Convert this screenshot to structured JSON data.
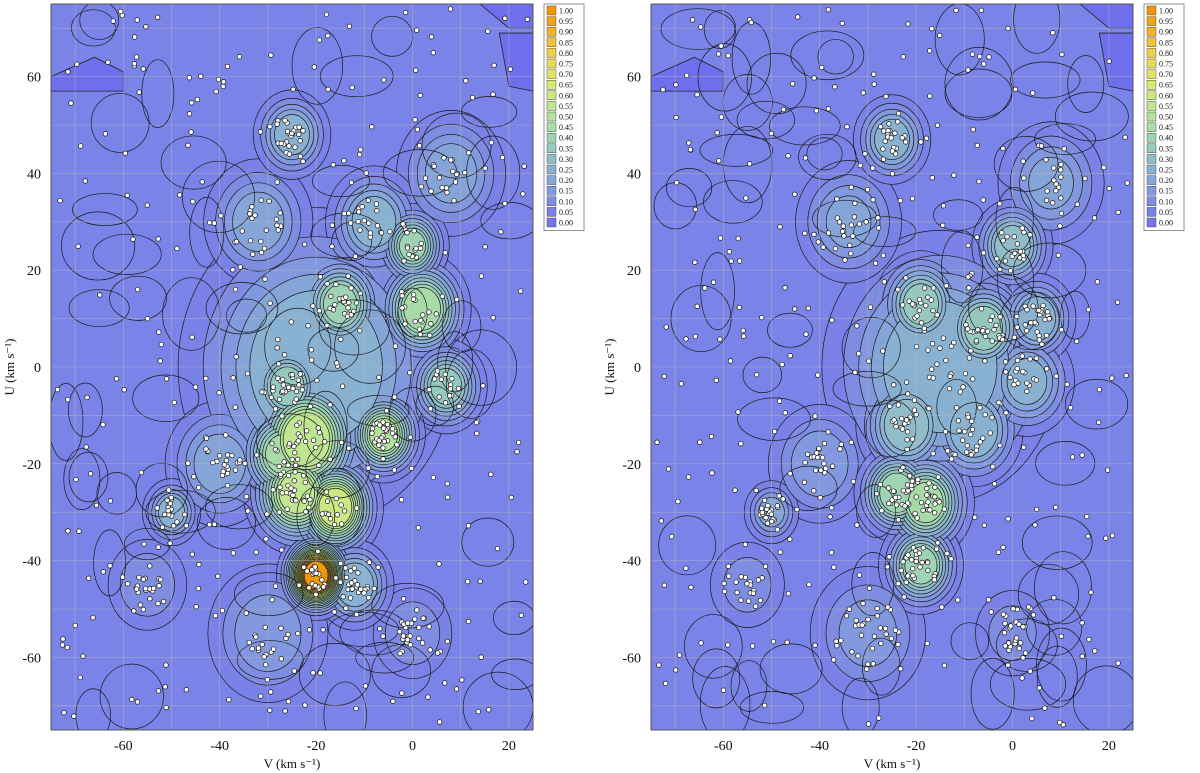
{
  "colorscale": {
    "levels": [
      "1.00",
      "0.95",
      "0.90",
      "0.85",
      "0.80",
      "0.75",
      "0.70",
      "0.65",
      "0.60",
      "0.55",
      "0.50",
      "0.45",
      "0.40",
      "0.35",
      "0.30",
      "0.25",
      "0.20",
      "0.15",
      "0.10",
      "0.05",
      "0.00"
    ],
    "colors": [
      "#f0960a",
      "#f0a51a",
      "#f0b52a",
      "#f0c43a",
      "#ecd04a",
      "#e8db58",
      "#e2e466",
      "#d8e874",
      "#cce882",
      "#c0e690",
      "#b4e29c",
      "#a8dca8",
      "#9ed4b4",
      "#96cabe",
      "#90bec8",
      "#8ab2d0",
      "#86a6d8",
      "#829ade",
      "#7e8ee2",
      "#7a82e6",
      "#7676ea"
    ]
  },
  "panels": [
    {
      "xlabel": "V (km s⁻¹)",
      "ylabel": "U (km s⁻¹)",
      "xticks": [
        "-60",
        "-40",
        "-20",
        "0",
        "20"
      ],
      "yticks": [
        "60",
        "40",
        "20",
        "0",
        "-20",
        "-40",
        "-60"
      ]
    },
    {
      "xlabel": "V (km s⁻¹)",
      "ylabel": "U (km s⁻¹)",
      "xticks": [
        "-60",
        "-40",
        "-20",
        "0",
        "20"
      ],
      "yticks": [
        "60",
        "40",
        "20",
        "0",
        "-20",
        "-40",
        "-60"
      ]
    }
  ],
  "chart_data": [
    {
      "type": "heatmap",
      "title": "",
      "xlabel": "V (km s⁻¹)",
      "ylabel": "U (km s⁻¹)",
      "xlim": [
        -75,
        25
      ],
      "ylim": [
        -75,
        75
      ],
      "xticks": [
        -60,
        -40,
        -20,
        0,
        20
      ],
      "yticks": [
        -60,
        -40,
        -20,
        0,
        20,
        40,
        60
      ],
      "grid": true,
      "colorbar_range": [
        0,
        1
      ],
      "peaks": [
        {
          "v": -20,
          "u": -43,
          "z": 1.0,
          "s": 3.2
        },
        {
          "v": -16,
          "u": -29,
          "z": 0.62,
          "s": 4.2
        },
        {
          "v": -24,
          "u": -26,
          "z": 0.55,
          "s": 4.8
        },
        {
          "v": -22,
          "u": -15,
          "z": 0.6,
          "s": 5.5
        },
        {
          "v": -27,
          "u": -18,
          "z": 0.45,
          "s": 4.5
        },
        {
          "v": -6,
          "u": -14,
          "z": 0.5,
          "s": 3.8
        },
        {
          "v": 2,
          "u": 12,
          "z": 0.48,
          "s": 4.5
        },
        {
          "v": -15,
          "u": 13,
          "z": 0.4,
          "s": 4.5
        },
        {
          "v": 0,
          "u": 25,
          "z": 0.4,
          "s": 3.5
        },
        {
          "v": -26,
          "u": -4,
          "z": 0.38,
          "s": 4.0
        },
        {
          "v": 7,
          "u": -4,
          "z": 0.36,
          "s": 4.0
        },
        {
          "v": -12,
          "u": -45,
          "z": 0.3,
          "s": 4.0
        },
        {
          "v": -25,
          "u": 48,
          "z": 0.28,
          "s": 4.0
        },
        {
          "v": -8,
          "u": 30,
          "z": 0.28,
          "s": 5.0
        },
        {
          "v": -50,
          "u": -30,
          "z": 0.28,
          "s": 3.0
        },
        {
          "v": -40,
          "u": -20,
          "z": 0.22,
          "s": 6.0
        },
        {
          "v": -20,
          "u": 0,
          "z": 0.3,
          "s": 14.0
        },
        {
          "v": -32,
          "u": 30,
          "z": 0.22,
          "s": 6.0
        },
        {
          "v": 8,
          "u": 40,
          "z": 0.22,
          "s": 6.0
        },
        {
          "v": -30,
          "u": -55,
          "z": 0.18,
          "s": 7.0
        },
        {
          "v": -55,
          "u": -45,
          "z": 0.14,
          "s": 5.0
        },
        {
          "v": 0,
          "u": -55,
          "z": 0.14,
          "s": 5.0
        }
      ]
    },
    {
      "type": "heatmap",
      "title": "",
      "xlabel": "V (km s⁻¹)",
      "ylabel": "U (km s⁻¹)",
      "xlim": [
        -75,
        25
      ],
      "ylim": [
        -75,
        75
      ],
      "xticks": [
        -60,
        -40,
        -20,
        0,
        20
      ],
      "yticks": [
        -60,
        -40,
        -20,
        0,
        20,
        40,
        60
      ],
      "grid": true,
      "colorbar_range": [
        0,
        1
      ],
      "peaks": [
        {
          "v": -18,
          "u": -28,
          "z": 0.46,
          "s": 4.5
        },
        {
          "v": -24,
          "u": -26,
          "z": 0.44,
          "s": 4.0
        },
        {
          "v": -19,
          "u": -41,
          "z": 0.42,
          "s": 4.0
        },
        {
          "v": -19,
          "u": 13,
          "z": 0.36,
          "s": 4.5
        },
        {
          "v": -6,
          "u": 8,
          "z": 0.38,
          "s": 4.5
        },
        {
          "v": 0,
          "u": 25,
          "z": 0.34,
          "s": 4.0
        },
        {
          "v": -22,
          "u": -12,
          "z": 0.34,
          "s": 5.0
        },
        {
          "v": -8,
          "u": -13,
          "z": 0.3,
          "s": 5.0
        },
        {
          "v": -15,
          "u": 0,
          "z": 0.3,
          "s": 12.0
        },
        {
          "v": -25,
          "u": 47,
          "z": 0.28,
          "s": 4.0
        },
        {
          "v": 5,
          "u": 10,
          "z": 0.3,
          "s": 4.0
        },
        {
          "v": 3,
          "u": -3,
          "z": 0.26,
          "s": 5.0
        },
        {
          "v": -34,
          "u": 30,
          "z": 0.2,
          "s": 6.0
        },
        {
          "v": 8,
          "u": 38,
          "z": 0.2,
          "s": 6.0
        },
        {
          "v": -50,
          "u": -30,
          "z": 0.22,
          "s": 3.0
        },
        {
          "v": -40,
          "u": -20,
          "z": 0.18,
          "s": 6.0
        },
        {
          "v": -30,
          "u": -55,
          "z": 0.16,
          "s": 7.0
        },
        {
          "v": -55,
          "u": -45,
          "z": 0.12,
          "s": 5.0
        },
        {
          "v": 0,
          "u": -55,
          "z": 0.12,
          "s": 5.0
        }
      ]
    }
  ]
}
